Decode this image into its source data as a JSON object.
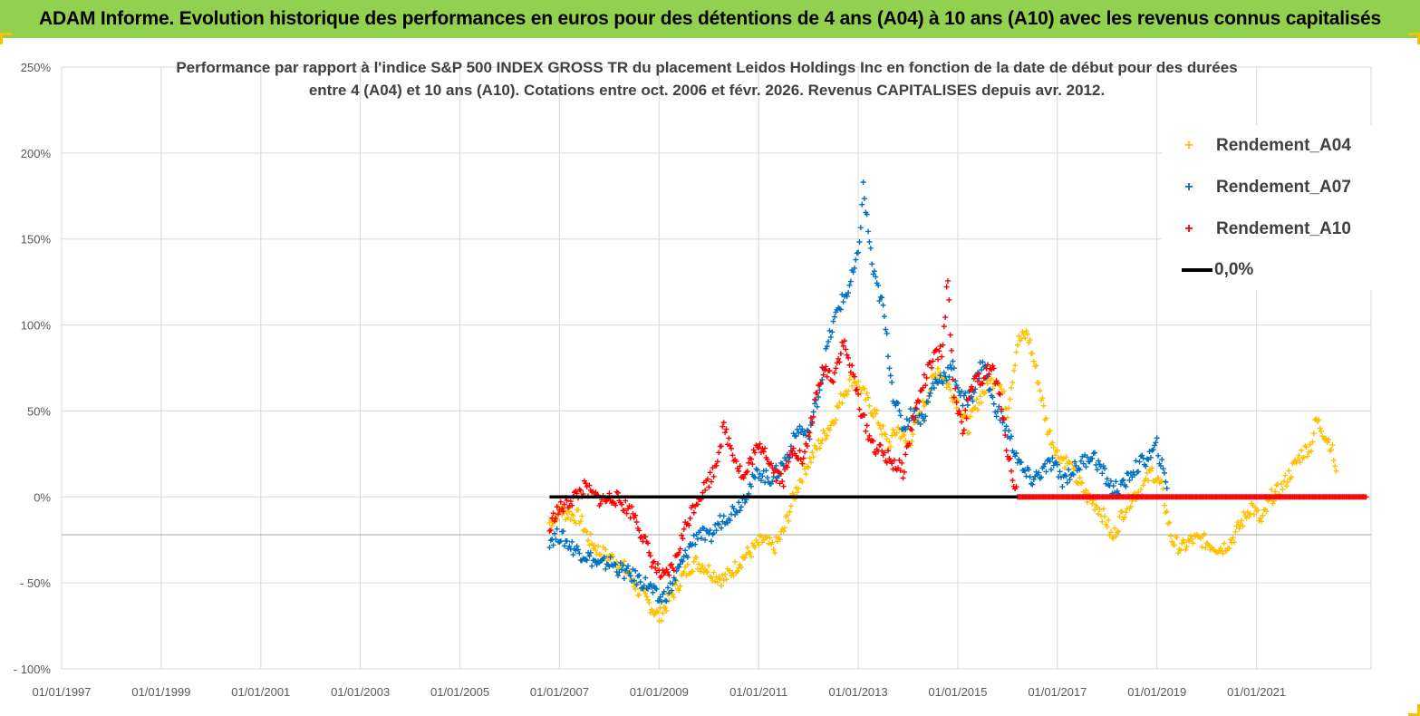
{
  "banner": {
    "title": "ADAM Informe. Evolution historique des performances en euros pour des détentions de 4 ans (A04) à 10 ans (A10) avec les revenus connus capitalisés"
  },
  "colors": {
    "banner_bg": "#92d050",
    "A04": "#ffc000",
    "A07": "#0070c0",
    "A10": "#ff0000",
    "zero_line": "#000000"
  },
  "chart_data": {
    "type": "scatter",
    "title_line1": "Performance par rapport à l'indice S&P 500 INDEX GROSS TR  du placement Leidos Holdings Inc en fonction de la date de début pour des durées",
    "title_line2": "entre 4 (A04) et 10 ans (A10).  Cotations entre oct. 2006 et févr. 2026. Revenus CAPITALISES depuis avr. 2012.",
    "xlim": [
      1997.0,
      2023.3
    ],
    "ylim": [
      -100,
      250
    ],
    "x_ticks": [
      1997,
      1999,
      2001,
      2003,
      2005,
      2007,
      2009,
      2011,
      2013,
      2015,
      2017,
      2019,
      2021
    ],
    "x_tick_labels": [
      "01/01/1997",
      "01/01/1999",
      "01/01/2001",
      "01/01/2003",
      "01/01/2005",
      "01/01/2007",
      "01/01/2009",
      "01/01/2011",
      "01/01/2013",
      "01/01/2015",
      "01/01/2017",
      "01/01/2019",
      "01/01/2021"
    ],
    "y_ticks": [
      -100,
      -50,
      0,
      50,
      100,
      150,
      200,
      250
    ],
    "y_tick_labels": [
      "- 100%",
      "- 50%",
      "0%",
      "50%",
      "100%",
      "150%",
      "200%",
      "250%"
    ],
    "grid": true,
    "legend_position": "top-right",
    "series": [
      {
        "name": "Rendement_A04",
        "marker": "+",
        "points": [
          [
            2006.8,
            -15
          ],
          [
            2007.0,
            -8
          ],
          [
            2007.2,
            -10
          ],
          [
            2007.4,
            -12
          ],
          [
            2007.6,
            -25
          ],
          [
            2007.8,
            -32
          ],
          [
            2008.0,
            -35
          ],
          [
            2008.2,
            -38
          ],
          [
            2008.4,
            -45
          ],
          [
            2008.6,
            -55
          ],
          [
            2008.8,
            -62
          ],
          [
            2009.0,
            -70
          ],
          [
            2009.1,
            -65
          ],
          [
            2009.3,
            -55
          ],
          [
            2009.5,
            -45
          ],
          [
            2009.7,
            -38
          ],
          [
            2009.9,
            -40
          ],
          [
            2010.1,
            -45
          ],
          [
            2010.3,
            -48
          ],
          [
            2010.5,
            -42
          ],
          [
            2010.7,
            -35
          ],
          [
            2010.9,
            -30
          ],
          [
            2011.1,
            -25
          ],
          [
            2011.3,
            -30
          ],
          [
            2011.5,
            -20
          ],
          [
            2011.7,
            0
          ],
          [
            2011.9,
            15
          ],
          [
            2012.1,
            25
          ],
          [
            2012.3,
            35
          ],
          [
            2012.5,
            45
          ],
          [
            2012.7,
            60
          ],
          [
            2012.9,
            70
          ],
          [
            2013.0,
            65
          ],
          [
            2013.2,
            55
          ],
          [
            2013.4,
            45
          ],
          [
            2013.6,
            30
          ],
          [
            2013.8,
            40
          ],
          [
            2014.0,
            30
          ],
          [
            2014.2,
            45
          ],
          [
            2014.4,
            60
          ],
          [
            2014.6,
            75
          ],
          [
            2014.8,
            65
          ],
          [
            2015.0,
            55
          ],
          [
            2015.2,
            40
          ],
          [
            2015.4,
            55
          ],
          [
            2015.6,
            65
          ],
          [
            2015.8,
            70
          ],
          [
            2016.0,
            50
          ],
          [
            2016.2,
            90
          ],
          [
            2016.4,
            95
          ],
          [
            2016.6,
            70
          ],
          [
            2016.8,
            40
          ],
          [
            2017.0,
            25
          ],
          [
            2017.2,
            20
          ],
          [
            2017.4,
            10
          ],
          [
            2017.6,
            0
          ],
          [
            2017.8,
            -5
          ],
          [
            2018.0,
            -15
          ],
          [
            2018.1,
            -25
          ],
          [
            2018.3,
            -10
          ],
          [
            2018.5,
            0
          ],
          [
            2018.7,
            5
          ],
          [
            2018.9,
            15
          ],
          [
            2019.1,
            5
          ],
          [
            2019.3,
            -25
          ],
          [
            2019.5,
            -30
          ],
          [
            2019.7,
            -25
          ],
          [
            2019.9,
            -25
          ],
          [
            2020.1,
            -28
          ],
          [
            2020.3,
            -30
          ],
          [
            2020.5,
            -25
          ],
          [
            2020.7,
            -15
          ],
          [
            2020.9,
            -5
          ],
          [
            2021.1,
            -15
          ],
          [
            2021.3,
            0
          ],
          [
            2021.5,
            5
          ],
          [
            2021.7,
            15
          ],
          [
            2021.9,
            25
          ],
          [
            2022.1,
            30
          ],
          [
            2022.2,
            45
          ],
          [
            2022.4,
            35
          ],
          [
            2022.5,
            30
          ],
          [
            2022.6,
            15
          ]
        ]
      },
      {
        "name": "Rendement_A07",
        "marker": "+",
        "points": [
          [
            2006.8,
            -25
          ],
          [
            2007.0,
            -22
          ],
          [
            2007.2,
            -28
          ],
          [
            2007.4,
            -32
          ],
          [
            2007.6,
            -35
          ],
          [
            2007.8,
            -40
          ],
          [
            2008.0,
            -38
          ],
          [
            2008.2,
            -42
          ],
          [
            2008.4,
            -45
          ],
          [
            2008.6,
            -48
          ],
          [
            2008.8,
            -52
          ],
          [
            2009.0,
            -60
          ],
          [
            2009.2,
            -55
          ],
          [
            2009.4,
            -42
          ],
          [
            2009.6,
            -30
          ],
          [
            2009.8,
            -20
          ],
          [
            2010.0,
            -25
          ],
          [
            2010.2,
            -15
          ],
          [
            2010.4,
            -10
          ],
          [
            2010.6,
            -5
          ],
          [
            2010.8,
            5
          ],
          [
            2011.0,
            15
          ],
          [
            2011.2,
            10
          ],
          [
            2011.4,
            15
          ],
          [
            2011.6,
            25
          ],
          [
            2011.8,
            40
          ],
          [
            2012.0,
            35
          ],
          [
            2012.2,
            60
          ],
          [
            2012.4,
            90
          ],
          [
            2012.6,
            110
          ],
          [
            2012.8,
            120
          ],
          [
            2013.0,
            140
          ],
          [
            2013.1,
            180
          ],
          [
            2013.3,
            130
          ],
          [
            2013.5,
            110
          ],
          [
            2013.7,
            60
          ],
          [
            2013.9,
            40
          ],
          [
            2014.1,
            50
          ],
          [
            2014.3,
            45
          ],
          [
            2014.5,
            65
          ],
          [
            2014.7,
            70
          ],
          [
            2014.9,
            75
          ],
          [
            2015.1,
            55
          ],
          [
            2015.3,
            60
          ],
          [
            2015.5,
            80
          ],
          [
            2015.7,
            55
          ],
          [
            2015.9,
            45
          ],
          [
            2016.1,
            30
          ],
          [
            2016.3,
            15
          ],
          [
            2016.5,
            10
          ],
          [
            2016.7,
            15
          ],
          [
            2016.9,
            20
          ],
          [
            2017.1,
            10
          ],
          [
            2017.3,
            15
          ],
          [
            2017.5,
            20
          ],
          [
            2017.7,
            25
          ],
          [
            2017.9,
            15
          ],
          [
            2018.1,
            5
          ],
          [
            2018.3,
            5
          ],
          [
            2018.5,
            15
          ],
          [
            2018.7,
            20
          ],
          [
            2018.9,
            25
          ],
          [
            2019.0,
            30
          ],
          [
            2019.2,
            5
          ]
        ]
      },
      {
        "name": "Rendement_A10",
        "marker": "+",
        "points": [
          [
            2006.8,
            -20
          ],
          [
            2006.9,
            -10
          ],
          [
            2007.1,
            -5
          ],
          [
            2007.3,
            0
          ],
          [
            2007.5,
            5
          ],
          [
            2007.7,
            0
          ],
          [
            2007.9,
            -2
          ],
          [
            2008.1,
            0
          ],
          [
            2008.3,
            -5
          ],
          [
            2008.5,
            -10
          ],
          [
            2008.7,
            -25
          ],
          [
            2008.9,
            -40
          ],
          [
            2009.1,
            -48
          ],
          [
            2009.3,
            -40
          ],
          [
            2009.5,
            -20
          ],
          [
            2009.7,
            -5
          ],
          [
            2009.9,
            5
          ],
          [
            2010.1,
            15
          ],
          [
            2010.3,
            40
          ],
          [
            2010.5,
            25
          ],
          [
            2010.7,
            10
          ],
          [
            2010.9,
            25
          ],
          [
            2011.1,
            30
          ],
          [
            2011.3,
            15
          ],
          [
            2011.5,
            10
          ],
          [
            2011.7,
            30
          ],
          [
            2011.9,
            20
          ],
          [
            2012.1,
            50
          ],
          [
            2012.3,
            75
          ],
          [
            2012.5,
            70
          ],
          [
            2012.7,
            90
          ],
          [
            2012.9,
            70
          ],
          [
            2013.1,
            45
          ],
          [
            2013.3,
            30
          ],
          [
            2013.5,
            25
          ],
          [
            2013.7,
            20
          ],
          [
            2013.9,
            15
          ],
          [
            2014.1,
            45
          ],
          [
            2014.3,
            65
          ],
          [
            2014.5,
            80
          ],
          [
            2014.7,
            85
          ],
          [
            2014.8,
            130
          ],
          [
            2014.9,
            65
          ],
          [
            2015.1,
            40
          ],
          [
            2015.3,
            65
          ],
          [
            2015.5,
            70
          ],
          [
            2015.7,
            75
          ],
          [
            2015.9,
            50
          ],
          [
            2016.0,
            25
          ],
          [
            2016.2,
            0
          ],
          [
            2016.5,
            0
          ],
          [
            2017.0,
            0
          ],
          [
            2017.5,
            0
          ],
          [
            2018.0,
            0
          ],
          [
            2018.5,
            0
          ],
          [
            2019.0,
            0
          ],
          [
            2019.5,
            0
          ],
          [
            2020.0,
            0
          ],
          [
            2020.5,
            0
          ],
          [
            2021.0,
            0
          ],
          [
            2021.5,
            0
          ],
          [
            2022.0,
            0
          ],
          [
            2022.5,
            0
          ],
          [
            2023.0,
            0
          ],
          [
            2023.2,
            0
          ]
        ]
      }
    ],
    "reference_line": {
      "name": "0,0%",
      "y": 0,
      "x_start": 2006.8,
      "x_end": 2016.2
    }
  }
}
